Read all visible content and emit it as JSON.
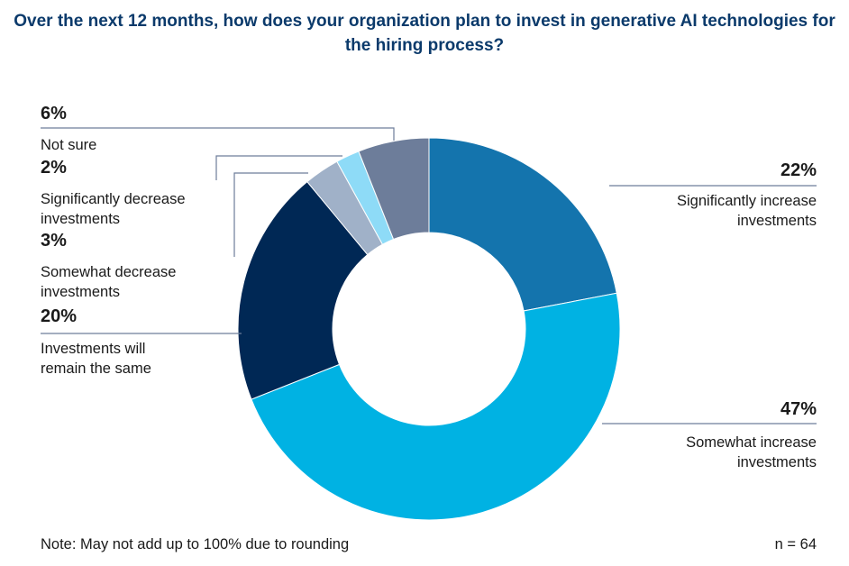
{
  "chart_data": {
    "type": "pie",
    "donut": true,
    "title": "Over the next 12 months, how does your organization plan to invest in generative AI technologies for the hiring process?",
    "slices": [
      {
        "label": "Significantly increase investments",
        "value": 22,
        "display": "22%",
        "color": "#1474ad"
      },
      {
        "label": "Somewhat increase investments",
        "value": 47,
        "display": "47%",
        "color": "#00b2e3"
      },
      {
        "label": "Investments will remain the same",
        "value": 20,
        "display": "20%",
        "color": "#002855"
      },
      {
        "label": "Somewhat decrease investments",
        "value": 3,
        "display": "3%",
        "color": "#a0b1c8"
      },
      {
        "label": "Significantly decrease investments",
        "value": 2,
        "display": "2%",
        "color": "#8edbf7"
      },
      {
        "label": "Not sure",
        "value": 6,
        "display": "6%",
        "color": "#6d7d9a"
      }
    ],
    "note": "Note: May not add up to 100% due to rounding",
    "n": "n = 64"
  }
}
